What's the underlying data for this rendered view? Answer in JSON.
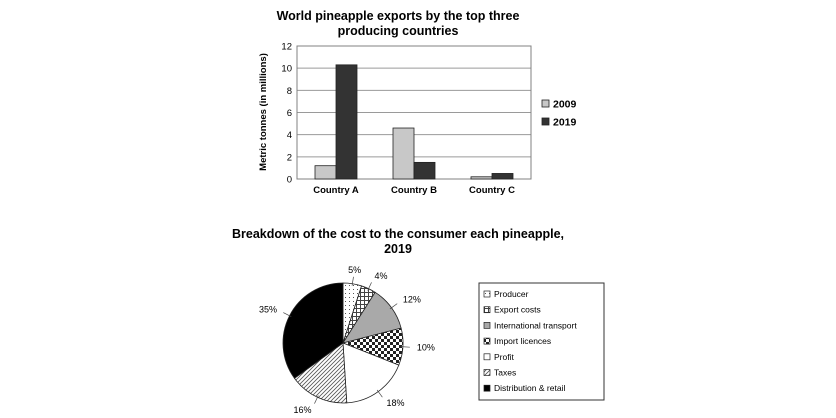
{
  "chart_data": [
    {
      "type": "bar",
      "title_lines": [
        "World pineapple exports by the top three",
        "producing countries"
      ],
      "ylabel": "Metric tonnes (in millions)",
      "xlabel": "",
      "categories": [
        "Country A",
        "Country B",
        "Country C"
      ],
      "yticks": [
        "0",
        "2",
        "4",
        "6",
        "8",
        "10",
        "12"
      ],
      "ylim": [
        0,
        12
      ],
      "grid": true,
      "legend": "right",
      "series": [
        {
          "name": "2009",
          "color": "#c8c8c8",
          "values": [
            1.2,
            4.6,
            0.2
          ]
        },
        {
          "name": "2019",
          "color": "#333333",
          "values": [
            10.3,
            1.5,
            0.5
          ]
        }
      ]
    },
    {
      "type": "pie",
      "title_lines": [
        "Breakdown of the cost to the consumer each pineapple,",
        "2019"
      ],
      "legend": "right",
      "slices": [
        {
          "name": "Producer",
          "value": 5,
          "label": "5%",
          "pattern": "dots"
        },
        {
          "name": "Export costs",
          "value": 4,
          "label": "4%",
          "pattern": "grid"
        },
        {
          "name": "International transport",
          "value": 12,
          "label": "12%",
          "pattern": "gray"
        },
        {
          "name": "Import licences",
          "value": 10,
          "label": "10%",
          "pattern": "checker"
        },
        {
          "name": "Profit",
          "value": 18,
          "label": "18%",
          "pattern": "white"
        },
        {
          "name": "Taxes",
          "value": 16,
          "label": "16%",
          "pattern": "hatch"
        },
        {
          "name": "Distribution & retail",
          "value": 35,
          "label": "35%",
          "pattern": "black"
        }
      ]
    }
  ]
}
